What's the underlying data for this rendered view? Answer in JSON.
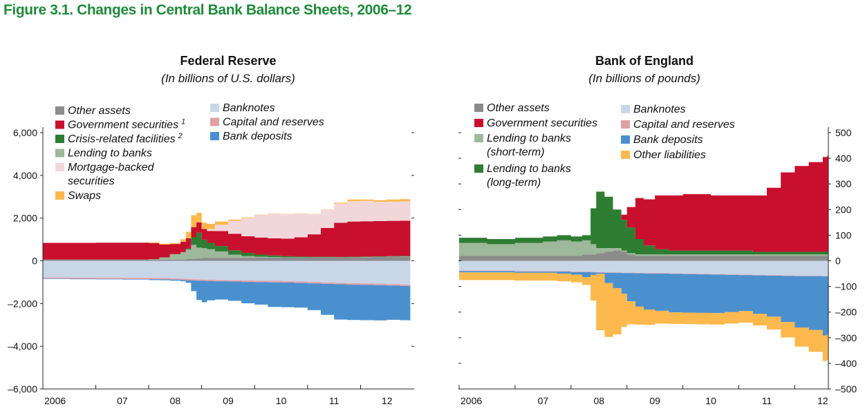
{
  "figure_title": "Figure 3.1. Changes in Central Bank Balance Sheets, 2006–12",
  "chart_data": [
    {
      "type": "area",
      "title": "Federal Reserve",
      "subtitle": "(In billions of U.S. dollars)",
      "x": [
        2006.0,
        2006.5,
        2007.0,
        2007.5,
        2008.0,
        2008.2,
        2008.4,
        2008.6,
        2008.7,
        2008.8,
        2008.9,
        2009.0,
        2009.1,
        2009.25,
        2009.5,
        2009.75,
        2010.0,
        2010.25,
        2010.5,
        2010.75,
        2011.0,
        2011.25,
        2011.5,
        2011.75,
        2012.0,
        2012.25,
        2012.5,
        2012.75,
        2012.92
      ],
      "xticks": [
        "2006",
        "07",
        "08",
        "09",
        "10",
        "11",
        "12"
      ],
      "xtick_values": [
        2006,
        2007,
        2008,
        2009,
        2010,
        2011,
        2012
      ],
      "ylim": [
        -6000,
        6000
      ],
      "yticks": [
        6000,
        4000,
        2000,
        0,
        -2000,
        -4000,
        -6000
      ],
      "ytick_labels": [
        "6,000",
        "4,000",
        "2,000",
        "0",
        "–2,000",
        "–4,000",
        "–6,000"
      ],
      "axis_side": "left",
      "legend": [
        [
          "Other assets",
          "Government securities",
          "Crisis-related facilities",
          "Lending to banks",
          "Mortgage-backed securities",
          "Swaps"
        ],
        [
          "Banknotes",
          "Capital and reserves",
          "Bank deposits"
        ]
      ],
      "legend_superscripts": {
        "Government securities": "1",
        "Crisis-related facilities": "2"
      },
      "series": [
        {
          "name": "Other assets",
          "color": "#8c8c8c",
          "side": "asset",
          "values": [
            60,
            60,
            60,
            60,
            60,
            60,
            60,
            60,
            80,
            100,
            120,
            140,
            140,
            140,
            140,
            140,
            150,
            150,
            150,
            150,
            150,
            150,
            150,
            160,
            170,
            180,
            190,
            200,
            200
          ]
        },
        {
          "name": "Lending to banks",
          "color": "#9db89a",
          "side": "asset",
          "values": [
            0,
            0,
            0,
            0,
            20,
            100,
            250,
            350,
            450,
            650,
            500,
            450,
            400,
            300,
            150,
            80,
            40,
            20,
            10,
            10,
            10,
            10,
            10,
            10,
            10,
            10,
            10,
            10,
            10
          ]
        },
        {
          "name": "Crisis-related facilities",
          "color": "#2e7d32",
          "side": "asset",
          "values": [
            0,
            0,
            0,
            0,
            0,
            0,
            0,
            0,
            50,
            350,
            700,
            400,
            300,
            250,
            200,
            150,
            100,
            80,
            60,
            40,
            30,
            30,
            20,
            20,
            20,
            20,
            20,
            20,
            20
          ]
        },
        {
          "name": "Government securities",
          "color": "#c8102e",
          "side": "asset",
          "values": [
            780,
            780,
            790,
            790,
            750,
            600,
            480,
            480,
            480,
            480,
            480,
            500,
            560,
            700,
            780,
            780,
            800,
            800,
            820,
            900,
            1050,
            1350,
            1600,
            1650,
            1650,
            1650,
            1650,
            1650,
            1650
          ]
        },
        {
          "name": "Mortgage-backed securities",
          "color": "#f2d7da",
          "side": "asset",
          "values": [
            0,
            0,
            0,
            0,
            0,
            0,
            0,
            0,
            0,
            0,
            0,
            0,
            80,
            300,
            600,
            850,
            1050,
            1150,
            1150,
            1100,
            950,
            850,
            900,
            950,
            950,
            900,
            900,
            900,
            900
          ]
        },
        {
          "name": "Swaps",
          "color": "#fdb94e",
          "side": "asset",
          "values": [
            0,
            0,
            0,
            0,
            40,
            40,
            40,
            120,
            300,
            550,
            450,
            300,
            250,
            150,
            60,
            30,
            20,
            10,
            10,
            10,
            10,
            10,
            40,
            80,
            70,
            80,
            100,
            110,
            80
          ]
        },
        {
          "name": "Banknotes",
          "color": "#c9d6e8",
          "side": "liability",
          "values": [
            -780,
            -790,
            -790,
            -800,
            -800,
            -810,
            -820,
            -840,
            -850,
            -860,
            -870,
            -880,
            -890,
            -900,
            -910,
            -920,
            -930,
            -940,
            -950,
            -970,
            -990,
            -1010,
            -1030,
            -1050,
            -1060,
            -1070,
            -1090,
            -1110,
            -1120
          ]
        },
        {
          "name": "Capital and reserves",
          "color": "#e0a0a6",
          "side": "liability",
          "values": [
            -50,
            -50,
            -60,
            -60,
            -60,
            -60,
            -60,
            -60,
            -60,
            -60,
            -60,
            -60,
            -60,
            -60,
            -60,
            -70,
            -70,
            -70,
            -70,
            -70,
            -70,
            -70,
            -70,
            -70,
            -70,
            -70,
            -70,
            -70,
            -70
          ]
        },
        {
          "name": "Bank deposits",
          "color": "#4a90cf",
          "side": "liability",
          "values": [
            -20,
            -20,
            -20,
            -20,
            -40,
            -40,
            -50,
            -60,
            -120,
            -500,
            -900,
            -1000,
            -900,
            -850,
            -900,
            -1000,
            -1050,
            -1150,
            -1150,
            -1150,
            -1250,
            -1450,
            -1650,
            -1650,
            -1650,
            -1650,
            -1600,
            -1600,
            -1600
          ]
        }
      ]
    },
    {
      "type": "area",
      "title": "Bank of England",
      "subtitle": "(In billions of pounds)",
      "x": [
        2006.0,
        2006.5,
        2007.0,
        2007.5,
        2007.75,
        2008.0,
        2008.2,
        2008.35,
        2008.45,
        2008.6,
        2008.75,
        2008.9,
        2009.0,
        2009.15,
        2009.3,
        2009.5,
        2009.75,
        2010.0,
        2010.25,
        2010.5,
        2010.75,
        2011.0,
        2011.25,
        2011.5,
        2011.75,
        2012.0,
        2012.25,
        2012.5,
        2012.58
      ],
      "xticks": [
        "2006",
        "07",
        "08",
        "09",
        "10",
        "11",
        "12"
      ],
      "xtick_values": [
        2006,
        2007,
        2008,
        2009,
        2010,
        2011,
        2012
      ],
      "ylim": [
        -500,
        500
      ],
      "yticks": [
        500,
        400,
        300,
        200,
        100,
        0,
        -100,
        -200,
        -300,
        -400,
        -500
      ],
      "ytick_labels": [
        "500",
        "400",
        "300",
        "200",
        "100",
        "0",
        "–100",
        "–200",
        "–300",
        "–400",
        "–500"
      ],
      "axis_side": "right",
      "legend": [
        [
          "Other assets",
          "Government securities",
          "Lending to banks (short-term)",
          "Lending to banks (long-term)"
        ],
        [
          "Banknotes",
          "Capital and reserves",
          "Bank deposits",
          "Other liabilities"
        ]
      ],
      "series": [
        {
          "name": "Other assets",
          "color": "#8c8c8c",
          "side": "asset",
          "values": [
            20,
            20,
            20,
            20,
            20,
            20,
            25,
            25,
            30,
            35,
            40,
            35,
            25,
            20,
            20,
            20,
            20,
            20,
            20,
            20,
            20,
            20,
            20,
            20,
            20,
            20,
            20,
            20,
            20
          ]
        },
        {
          "name": "Lending to banks (short-term)",
          "color": "#9db89a",
          "side": "asset",
          "values": [
            50,
            45,
            50,
            55,
            60,
            55,
            55,
            40,
            20,
            15,
            10,
            5,
            5,
            5,
            5,
            5,
            5,
            5,
            5,
            5,
            5,
            5,
            5,
            5,
            5,
            5,
            5,
            5,
            5
          ]
        },
        {
          "name": "Lending to banks (long-term)",
          "color": "#2e7d32",
          "side": "asset",
          "values": [
            20,
            20,
            20,
            20,
            20,
            20,
            20,
            140,
            220,
            200,
            150,
            120,
            100,
            60,
            35,
            20,
            15,
            15,
            15,
            15,
            15,
            15,
            10,
            10,
            10,
            10,
            10,
            10,
            10
          ]
        },
        {
          "name": "Government securities",
          "color": "#c8102e",
          "side": "asset",
          "values": [
            0,
            0,
            0,
            0,
            0,
            0,
            0,
            0,
            0,
            0,
            0,
            20,
            80,
            160,
            180,
            210,
            215,
            220,
            220,
            215,
            215,
            215,
            220,
            250,
            310,
            335,
            350,
            370,
            375
          ]
        },
        {
          "name": "Banknotes",
          "color": "#c9d6e8",
          "side": "liability",
          "values": [
            -38,
            -38,
            -40,
            -40,
            -40,
            -42,
            -42,
            -43,
            -44,
            -45,
            -45,
            -46,
            -46,
            -47,
            -48,
            -48,
            -49,
            -50,
            -51,
            -52,
            -53,
            -54,
            -55,
            -56,
            -57,
            -58,
            -58,
            -59,
            -59
          ]
        },
        {
          "name": "Capital and reserves",
          "color": "#e0a0a6",
          "side": "liability",
          "values": [
            -2,
            -2,
            -2,
            -2,
            -2,
            -2,
            -2,
            -2,
            -2,
            -2,
            -2,
            -2,
            -2,
            -2,
            -2,
            -2,
            -2,
            -2,
            -2,
            -2,
            -2,
            -2,
            -2,
            -2,
            -2,
            -2,
            -2,
            -2,
            -2
          ]
        },
        {
          "name": "Bank deposits",
          "color": "#4a90cf",
          "side": "liability",
          "values": [
            -5,
            -5,
            -5,
            -5,
            -8,
            -10,
            -20,
            -10,
            -5,
            -40,
            -60,
            -80,
            -110,
            -130,
            -140,
            -145,
            -150,
            -150,
            -150,
            -150,
            -145,
            -140,
            -150,
            -160,
            -180,
            -200,
            -210,
            -230,
            -225
          ]
        },
        {
          "name": "Other liabilities",
          "color": "#fdb94e",
          "side": "liability",
          "values": [
            -30,
            -30,
            -30,
            -30,
            -30,
            -30,
            -30,
            -100,
            -220,
            -210,
            -180,
            -130,
            -90,
            -70,
            -60,
            -50,
            -45,
            -45,
            -45,
            -45,
            -45,
            -45,
            -45,
            -50,
            -60,
            -75,
            -85,
            -100,
            -100
          ]
        }
      ]
    }
  ]
}
